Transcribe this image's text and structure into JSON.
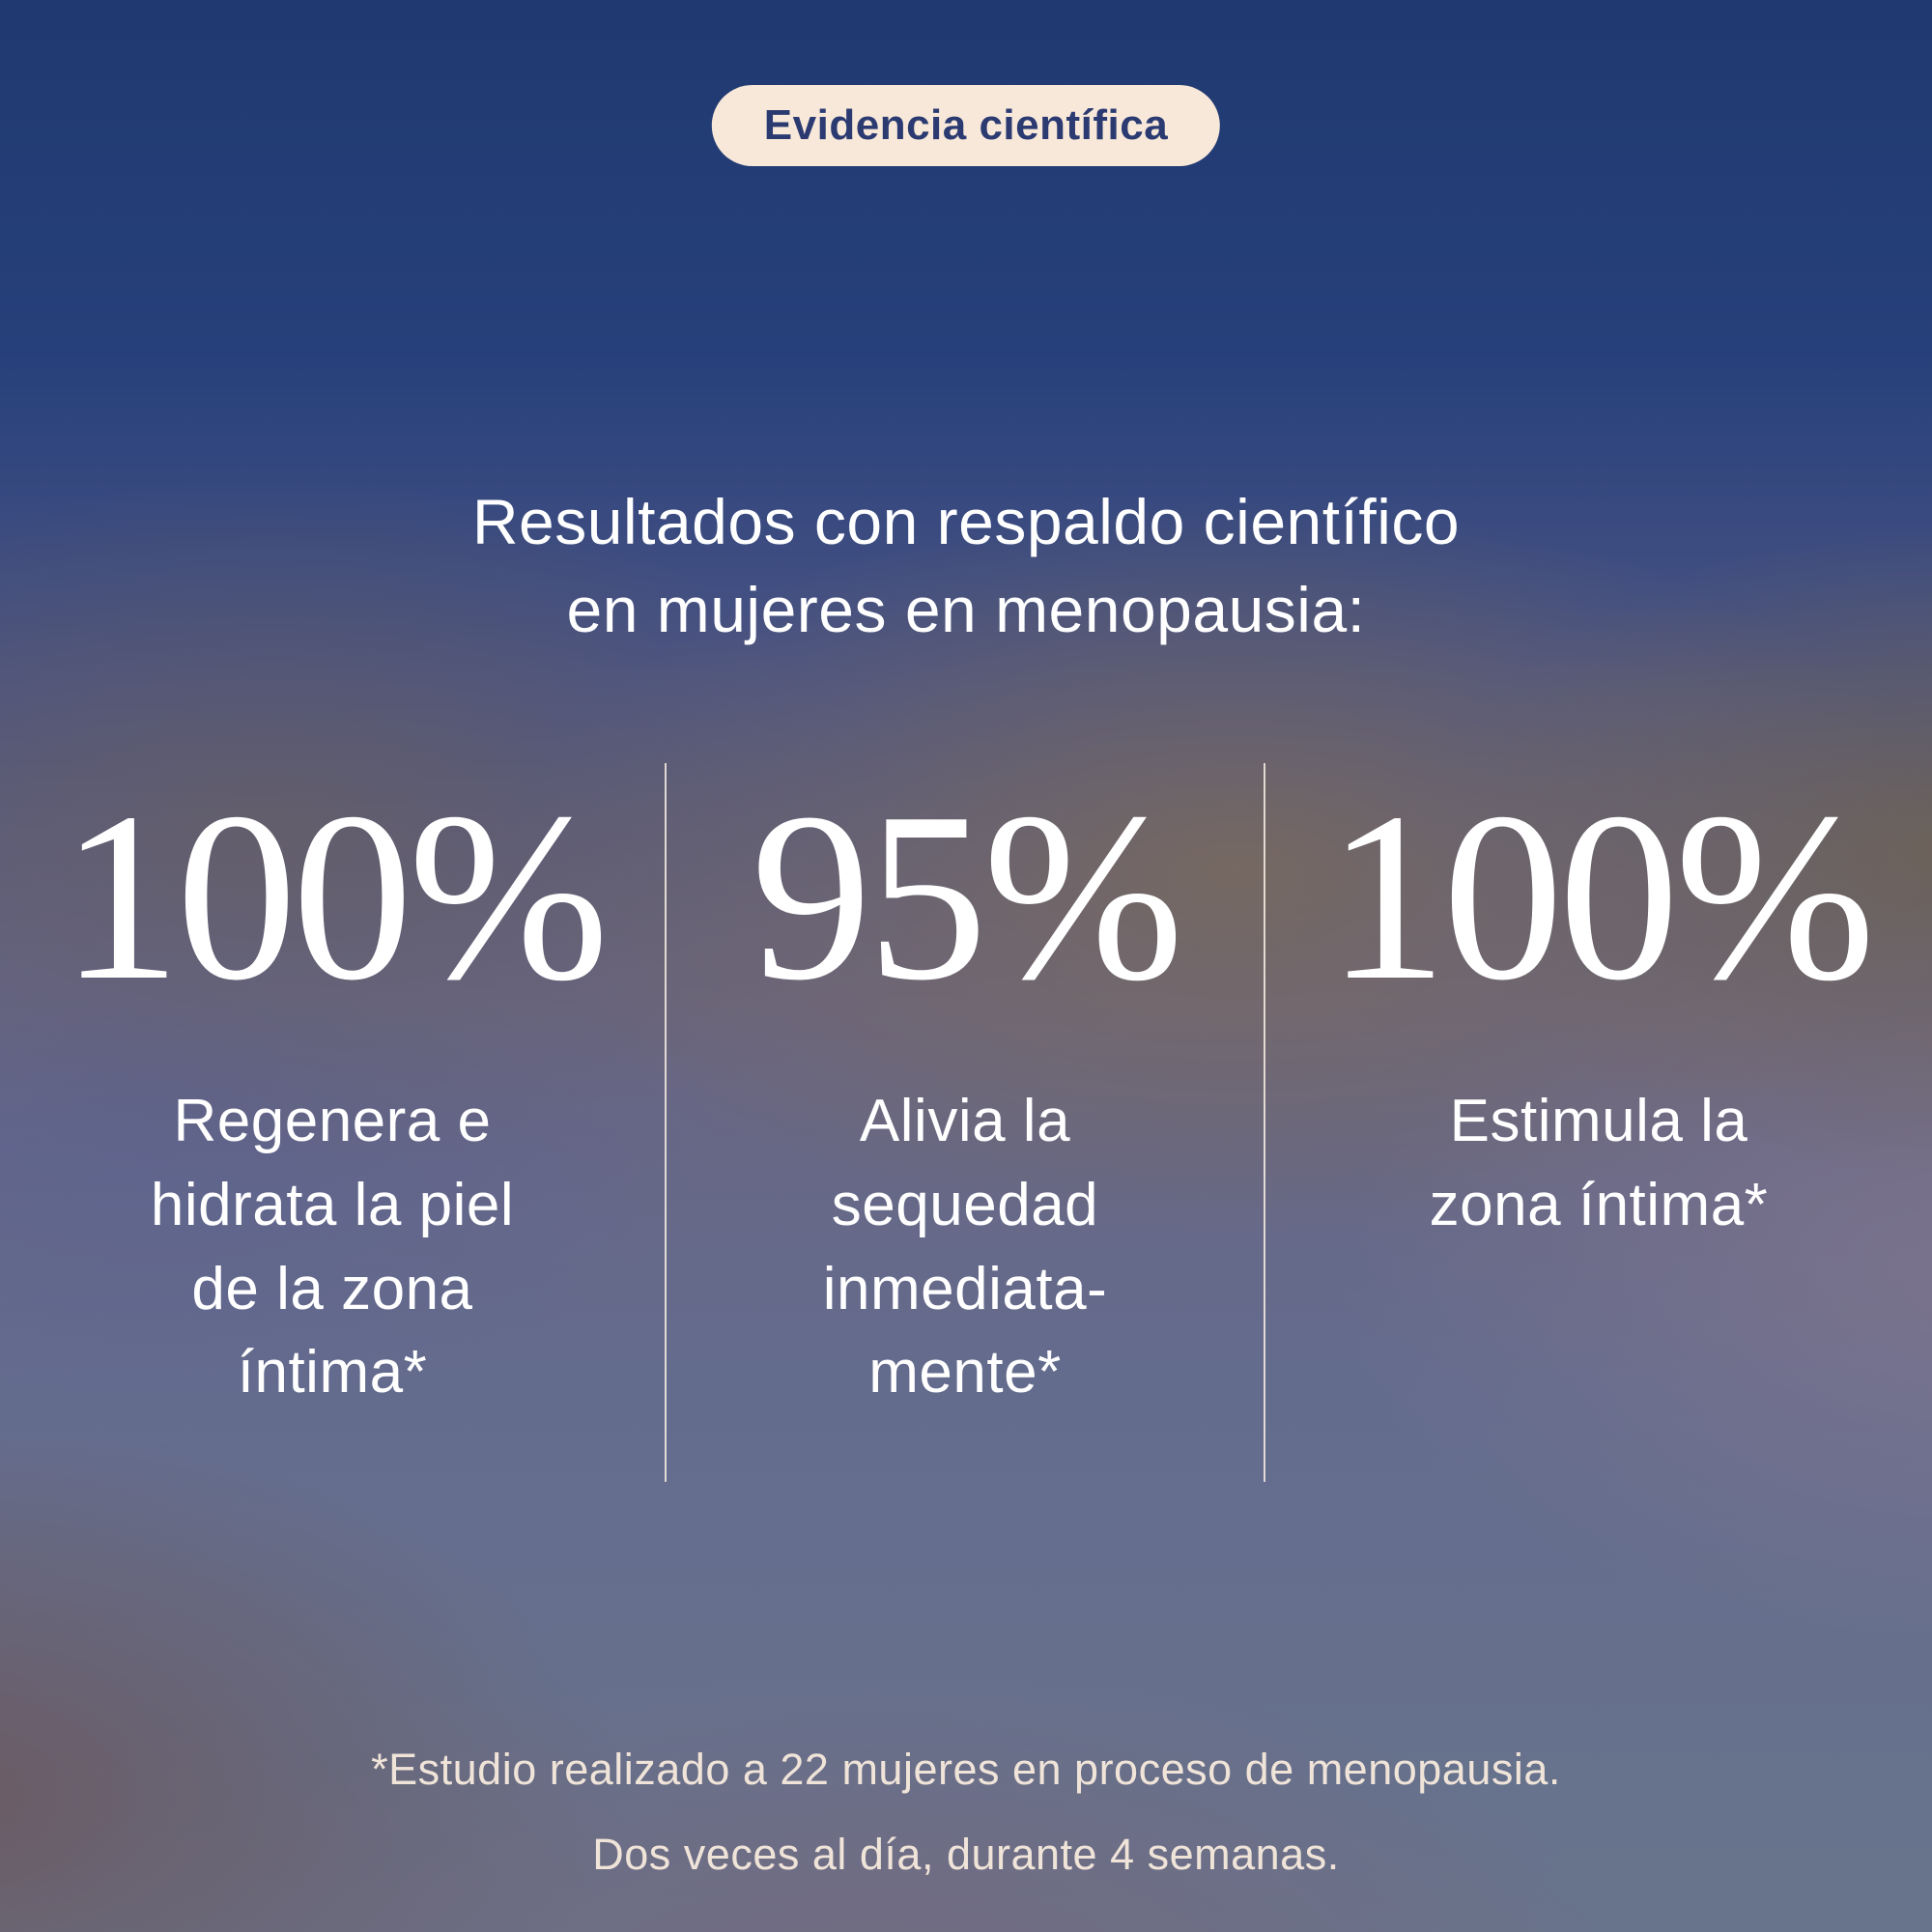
{
  "badge": {
    "label": "Evidencia científica"
  },
  "headline": {
    "text": "Resultados con respaldo científico\nen mujeres en menopausia:"
  },
  "stats": [
    {
      "value": "100%",
      "description": "Regenera e\nhidrata la piel\nde la zona\níntima*"
    },
    {
      "value": "95%",
      "description": "Alivia la\nsequedad\ninmediata-\nmente*"
    },
    {
      "value": "100%",
      "description": "Estimula la\nzona íntima*"
    }
  ],
  "footnote": {
    "text": "*Estudio realizado a 22 mujeres en proceso de menopausia.\nDos veces al día, durante 4 semanas."
  },
  "colors": {
    "badge_bg": "#F8E8D9",
    "badge_text": "#2B3B72",
    "headline_text": "#FFFFFF",
    "stat_text": "#FFFFFF",
    "footnote_text": "#F0E4D9",
    "divider": "#F3E9DF",
    "bg_top": "#203970",
    "bg_bottom": "#68748C"
  }
}
